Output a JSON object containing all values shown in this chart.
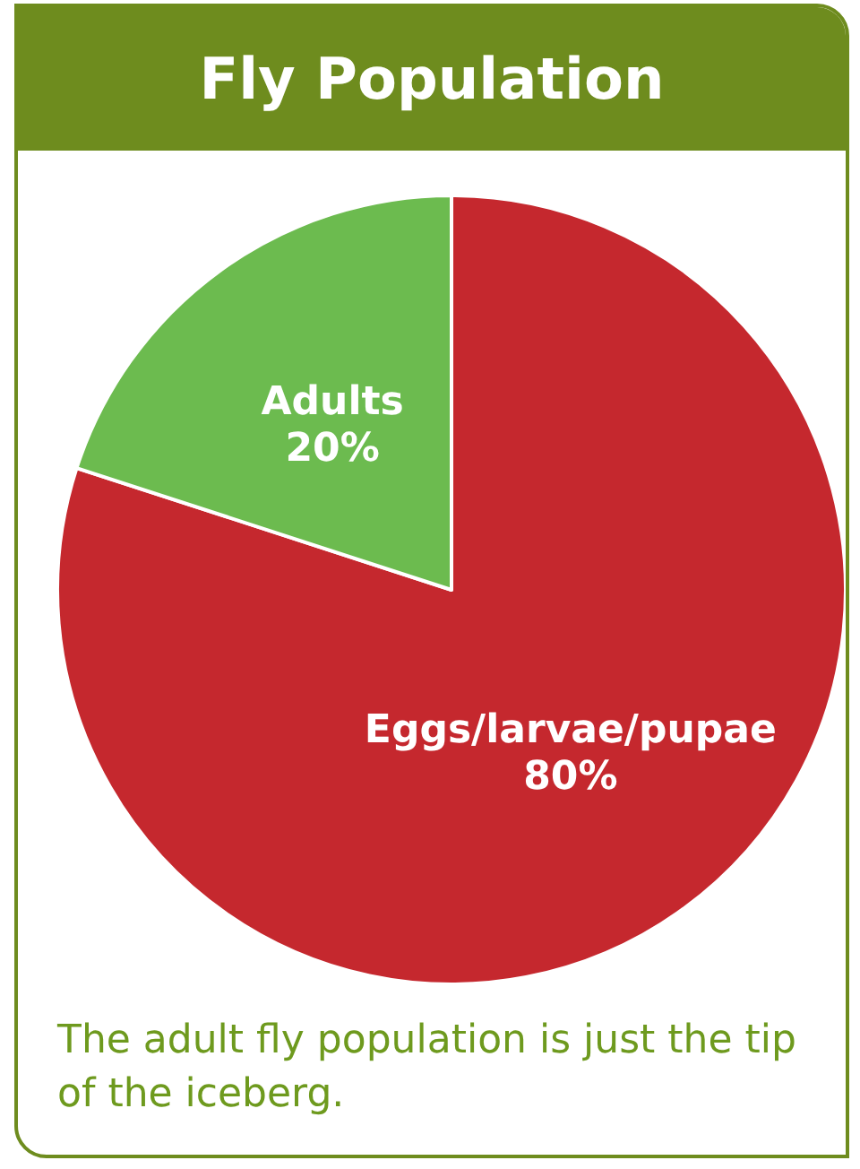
{
  "chart_data": {
    "type": "pie",
    "title": "Fly Population",
    "categories": [
      "Eggs/larvae/pupae",
      "Adults"
    ],
    "values": [
      80,
      20
    ],
    "colors": [
      "#c5282e",
      "#6cbb4f"
    ],
    "value_labels": [
      "80%",
      "20%"
    ],
    "legend": false,
    "annotations": [
      "The adult fly population is just the tip of the iceberg."
    ]
  }
}
